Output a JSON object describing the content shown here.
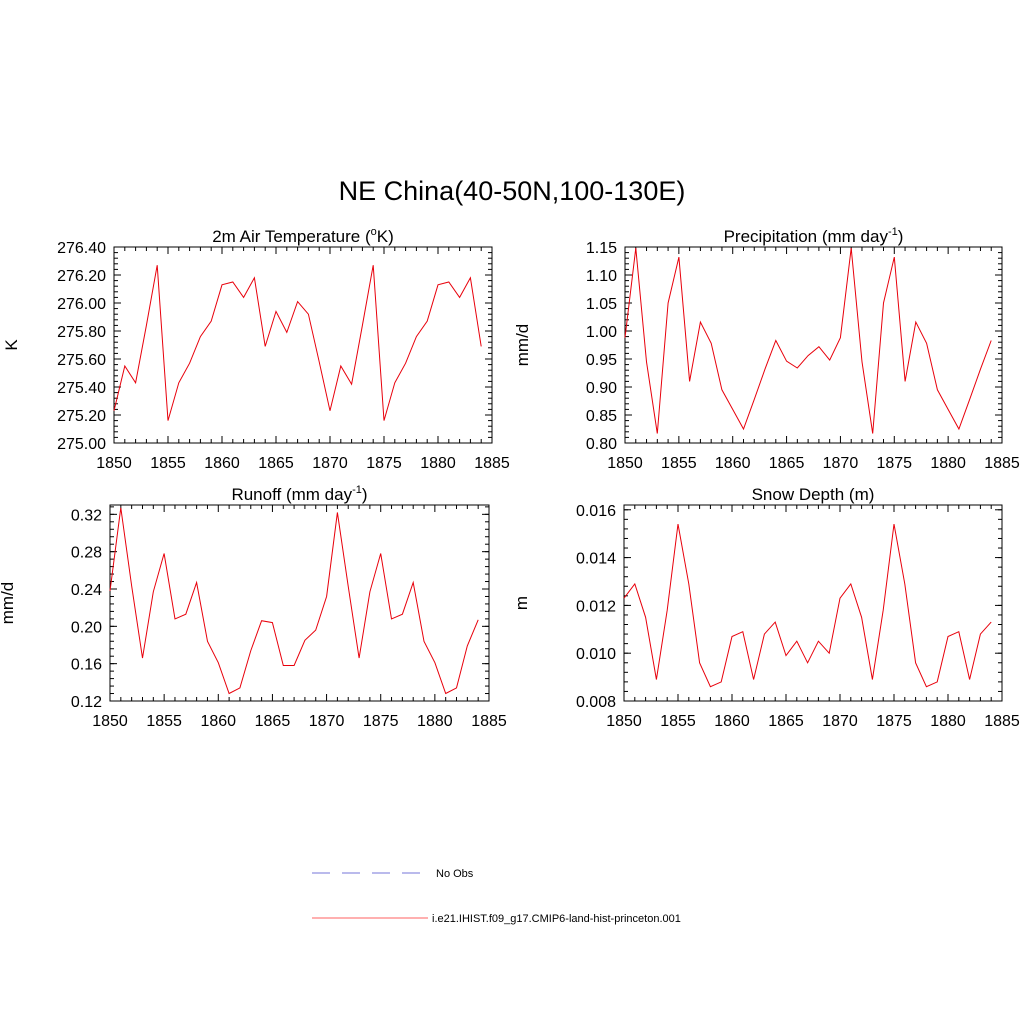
{
  "page": {
    "title": "NE China(40-50N,100-130E)"
  },
  "colors": {
    "model_line": "#e8000b",
    "obs_line": "#9090e0",
    "model_legend_line": "#ff8080",
    "axis": "#000000"
  },
  "legend": {
    "entries": [
      {
        "label": "No Obs",
        "style": "dashed",
        "color": "#9090e0"
      },
      {
        "label": "i.e21.IHIST.f09_g17.CMIP6-land-hist-princeton.001",
        "style": "solid",
        "color": "#ff8080"
      }
    ]
  },
  "chart_data": [
    {
      "type": "line",
      "title": "2m Air Temperature (",
      "title_sup": "o",
      "title_rest": "K)",
      "ylabel": "K",
      "xlim": [
        1850,
        1885
      ],
      "ylim": [
        275.0,
        276.4
      ],
      "xticks": [
        1850,
        1855,
        1860,
        1865,
        1870,
        1875,
        1880,
        1885
      ],
      "yticks": [
        275.0,
        275.2,
        275.4,
        275.6,
        275.8,
        276.0,
        276.2,
        276.4
      ],
      "ytick_labels": [
        "275.00",
        "275.20",
        "275.40",
        "275.60",
        "275.80",
        "276.00",
        "276.20",
        "276.40"
      ],
      "series": [
        {
          "x": [
            1850,
            1851,
            1852,
            1853,
            1854,
            1855,
            1856,
            1857,
            1858,
            1859,
            1860,
            1861,
            1862,
            1863,
            1864,
            1865,
            1866,
            1867,
            1868,
            1869,
            1870,
            1871,
            1872,
            1873,
            1874,
            1875,
            1876,
            1877,
            1878,
            1879,
            1880,
            1881,
            1882,
            1883,
            1884
          ],
          "values": [
            275.23,
            275.55,
            275.43,
            275.84,
            276.27,
            275.16,
            275.43,
            275.57,
            275.76,
            275.87,
            276.13,
            276.15,
            276.04,
            276.18,
            275.69,
            275.94,
            275.79,
            276.01,
            275.92,
            275.58,
            275.23,
            275.55,
            275.42,
            275.84,
            276.27,
            275.16,
            275.43,
            275.57,
            275.76,
            275.87,
            276.13,
            276.15,
            276.04,
            276.18,
            275.69
          ]
        }
      ]
    },
    {
      "type": "line",
      "title": "Precipitation (mm day",
      "title_sup": "-1",
      "title_rest": ")",
      "ylabel": "mm/d",
      "xlim": [
        1850,
        1885
      ],
      "ylim": [
        0.8,
        1.15
      ],
      "xticks": [
        1850,
        1855,
        1860,
        1865,
        1870,
        1875,
        1880,
        1885
      ],
      "yticks": [
        0.8,
        0.85,
        0.9,
        0.95,
        1.0,
        1.05,
        1.1,
        1.15
      ],
      "ytick_labels": [
        "0.80",
        "0.85",
        "0.90",
        "0.95",
        "1.00",
        "1.05",
        "1.10",
        "1.15"
      ],
      "series": [
        {
          "x": [
            1850,
            1851,
            1852,
            1853,
            1854,
            1855,
            1856,
            1857,
            1858,
            1859,
            1860,
            1861,
            1862,
            1863,
            1864,
            1865,
            1866,
            1867,
            1868,
            1869,
            1870,
            1871,
            1872,
            1873,
            1874,
            1875,
            1876,
            1877,
            1878,
            1879,
            1880,
            1881,
            1882,
            1883,
            1884
          ],
          "values": [
            0.988,
            1.148,
            0.945,
            0.817,
            1.05,
            1.132,
            0.91,
            1.016,
            0.978,
            0.895,
            0.86,
            0.825,
            0.878,
            0.932,
            0.983,
            0.946,
            0.934,
            0.956,
            0.972,
            0.948,
            0.988,
            1.148,
            0.945,
            0.817,
            1.05,
            1.132,
            0.91,
            1.016,
            0.978,
            0.895,
            0.86,
            0.825,
            0.878,
            0.932,
            0.983
          ]
        }
      ]
    },
    {
      "type": "line",
      "title": "Runoff (mm day",
      "title_sup": "-1",
      "title_rest": ")",
      "ylabel": "mm/d",
      "xlim": [
        1850,
        1885
      ],
      "ylim": [
        0.12,
        0.33
      ],
      "xticks": [
        1850,
        1855,
        1860,
        1865,
        1870,
        1875,
        1880,
        1885
      ],
      "yticks": [
        0.12,
        0.16,
        0.2,
        0.24,
        0.28,
        0.32
      ],
      "ytick_labels": [
        "0.12",
        "0.16",
        "0.20",
        "0.24",
        "0.28",
        "0.32"
      ],
      "series": [
        {
          "x": [
            1850,
            1851,
            1852,
            1853,
            1854,
            1855,
            1856,
            1857,
            1858,
            1859,
            1860,
            1861,
            1862,
            1863,
            1864,
            1865,
            1866,
            1867,
            1868,
            1869,
            1870,
            1871,
            1872,
            1873,
            1874,
            1875,
            1876,
            1877,
            1878,
            1879,
            1880,
            1881,
            1882,
            1883,
            1884
          ],
          "values": [
            0.238,
            0.327,
            0.243,
            0.166,
            0.237,
            0.278,
            0.208,
            0.213,
            0.247,
            0.184,
            0.161,
            0.128,
            0.134,
            0.174,
            0.206,
            0.204,
            0.158,
            0.158,
            0.185,
            0.196,
            0.232,
            0.322,
            0.243,
            0.166,
            0.237,
            0.278,
            0.208,
            0.213,
            0.247,
            0.184,
            0.161,
            0.128,
            0.134,
            0.179,
            0.207
          ]
        }
      ]
    },
    {
      "type": "line",
      "title": "Snow Depth (m)",
      "title_sup": "",
      "title_rest": "",
      "ylabel": "m",
      "xlim": [
        1850,
        1885
      ],
      "ylim": [
        0.008,
        0.0162
      ],
      "xticks": [
        1850,
        1855,
        1860,
        1865,
        1870,
        1875,
        1880,
        1885
      ],
      "yticks": [
        0.008,
        0.01,
        0.012,
        0.014,
        0.016
      ],
      "ytick_labels": [
        "0.008",
        "0.010",
        "0.012",
        "0.014",
        "0.016"
      ],
      "series": [
        {
          "x": [
            1850,
            1851,
            1852,
            1853,
            1854,
            1855,
            1856,
            1857,
            1858,
            1859,
            1860,
            1861,
            1862,
            1863,
            1864,
            1865,
            1866,
            1867,
            1868,
            1869,
            1870,
            1871,
            1872,
            1873,
            1874,
            1875,
            1876,
            1877,
            1878,
            1879,
            1880,
            1881,
            1882,
            1883,
            1884
          ],
          "values": [
            0.0123,
            0.0129,
            0.0115,
            0.0089,
            0.0118,
            0.0154,
            0.0129,
            0.0096,
            0.0086,
            0.0088,
            0.0107,
            0.0109,
            0.0089,
            0.0108,
            0.0113,
            0.0099,
            0.0105,
            0.0096,
            0.0105,
            0.01,
            0.0123,
            0.0129,
            0.0115,
            0.0089,
            0.0118,
            0.0154,
            0.0129,
            0.0096,
            0.0086,
            0.0088,
            0.0107,
            0.0109,
            0.0089,
            0.0108,
            0.0113
          ]
        }
      ]
    }
  ]
}
